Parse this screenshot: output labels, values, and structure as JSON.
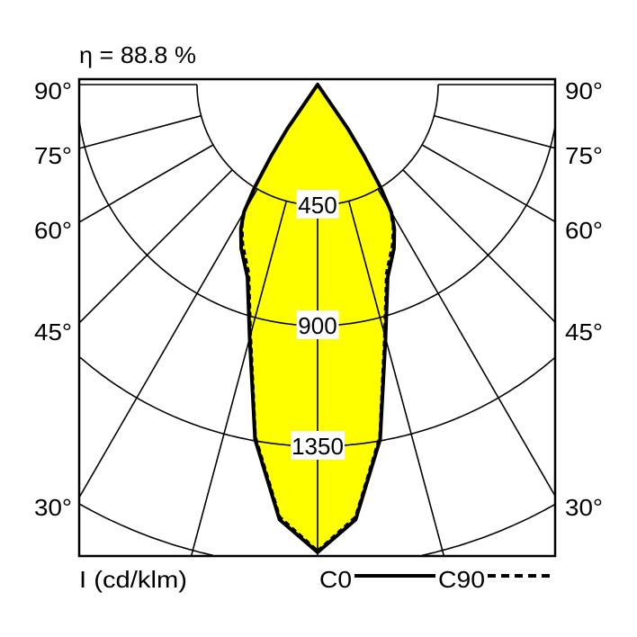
{
  "chart_data": {
    "type": "polar",
    "title": "η = 88.8 %",
    "unit_label": "I (cd/klm)",
    "radial_ticks": [
      450,
      900,
      1350,
      1800
    ],
    "radial_tick_labels": [
      "450",
      "900",
      "1350"
    ],
    "angle_labels": [
      "90°",
      "75°",
      "60°",
      "45°",
      "30°"
    ],
    "angle_ticks": [
      90,
      75,
      60,
      45,
      30
    ],
    "fill_color": "#ffff00",
    "series": [
      {
        "name": "C0",
        "style": "solid",
        "angles": [
          0,
          5,
          10,
          15,
          20,
          25,
          28,
          30,
          31.5,
          33,
          34.5,
          36
        ],
        "values": [
          1746,
          1630,
          1345,
          980,
          765,
          675,
          610,
          550,
          450,
          320,
          200,
          0
        ]
      },
      {
        "name": "C90",
        "style": "dashed",
        "angles": [
          0,
          5,
          10,
          15,
          20,
          25,
          28,
          30,
          31.5,
          33,
          34.5,
          36
        ],
        "values": [
          1740,
          1620,
          1335,
          965,
          750,
          660,
          600,
          545,
          450,
          320,
          200,
          0
        ]
      }
    ]
  }
}
